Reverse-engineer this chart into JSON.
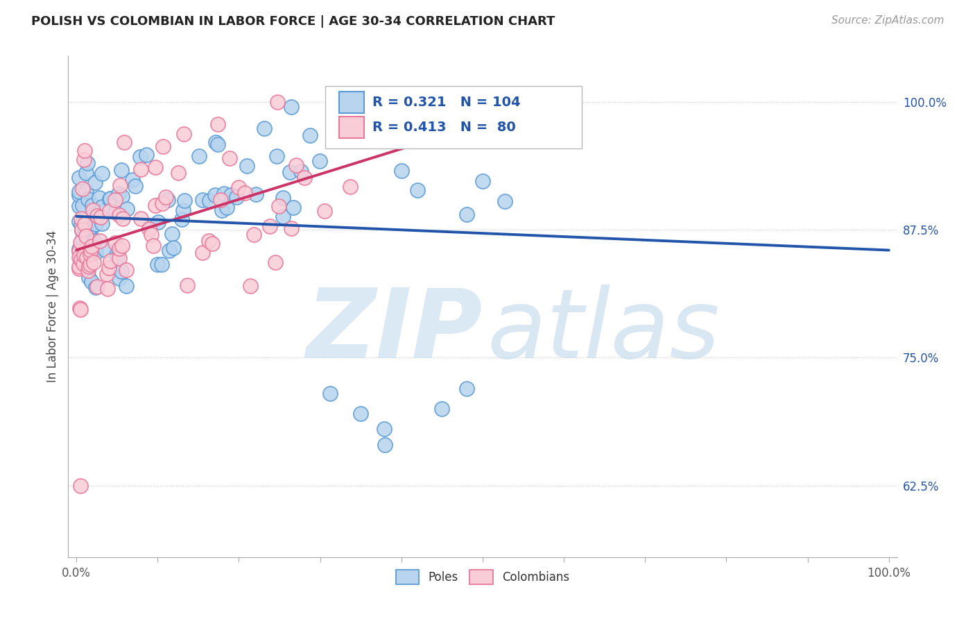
{
  "title": "POLISH VS COLOMBIAN IN LABOR FORCE | AGE 30-34 CORRELATION CHART",
  "source_text": "Source: ZipAtlas.com",
  "ylabel": "In Labor Force | Age 30-34",
  "ytick_values": [
    0.625,
    0.75,
    0.875,
    1.0
  ],
  "ytick_labels": [
    "62.5%",
    "75.0%",
    "87.5%",
    "100.0%"
  ],
  "xtick_values": [
    0,
    10,
    20,
    30,
    40,
    50,
    60,
    70,
    80,
    90,
    100
  ],
  "xtick_left_label": "0.0%",
  "xtick_right_label": "100.0%",
  "xlim": [
    -1,
    101
  ],
  "ylim": [
    0.555,
    1.045
  ],
  "blue_face": "#b8d4ee",
  "blue_edge": "#5b9bd5",
  "pink_face": "#f9cdd8",
  "pink_edge": "#e8799a",
  "trend_blue": "#2255aa",
  "trend_pink": "#cc3366",
  "legend_text_color": "#2255aa",
  "poles_R": 0.321,
  "poles_N": 104,
  "colombians_R": 0.413,
  "colombians_N": 80,
  "watermark_zip_color": "#cce0f0",
  "watermark_atlas_color": "#b8d4e8",
  "title_fontsize": 13,
  "source_fontsize": 11,
  "axis_tick_fontsize": 12,
  "ytick_color": "#2255aa",
  "xtick_color": "#555555",
  "grid_color": "#cccccc",
  "spine_color": "#aaaaaa",
  "seed": 77,
  "n_poles": 104,
  "n_colombians": 80
}
